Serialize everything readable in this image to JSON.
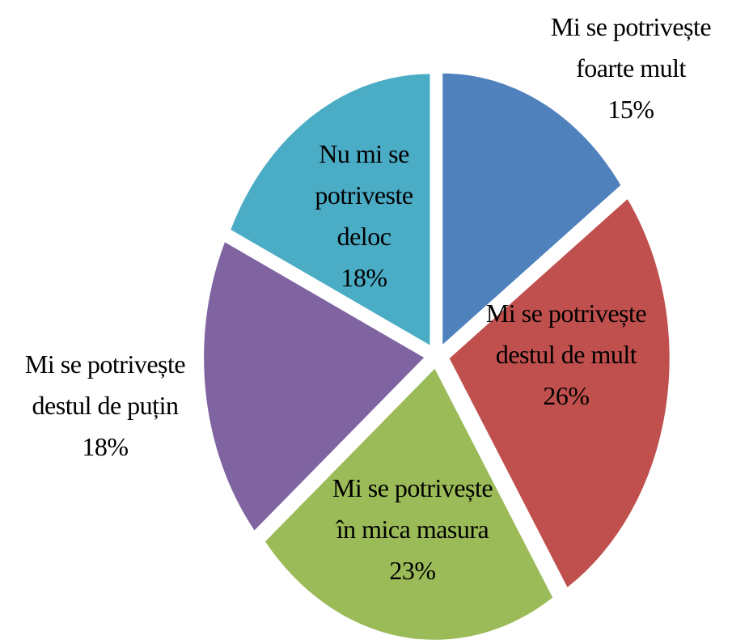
{
  "chart_data": {
    "type": "pie",
    "categories": [
      "Mi se potrivește foarte mult",
      "Mi se potrivește destul de mult",
      "Mi se potrivește în mica masura",
      "Mi se potrivește destul de puțin",
      "Nu mi se potriveste deloc"
    ],
    "values": [
      15,
      26,
      23,
      18,
      18
    ],
    "value_labels": [
      "15%",
      "26%",
      "23%",
      "18%",
      "18%"
    ],
    "colors": [
      "#4f81bd",
      "#c0504d",
      "#9bbb59",
      "#8064a2",
      "#4bacc6"
    ]
  }
}
